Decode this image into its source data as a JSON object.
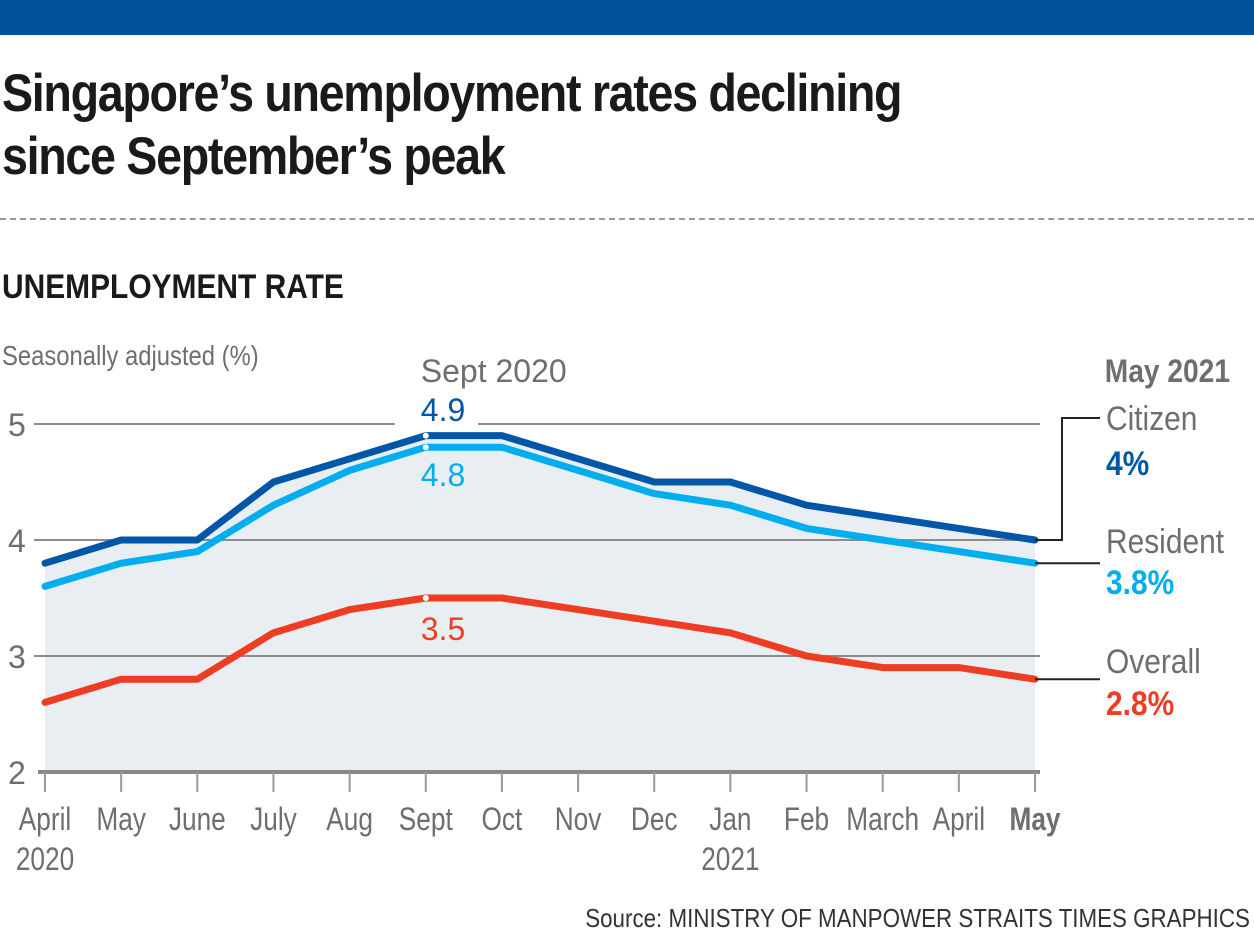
{
  "header": {
    "title_line1": "Singapore’s unemployment rates declining",
    "title_line2": "since September’s peak",
    "subtitle": "UNEMPLOYMENT RATE",
    "unit_label": "Seasonally adjusted (%)",
    "source": "Source: MINISTRY OF MANPOWER   STRAITS TIMES GRAPHICS"
  },
  "colors": {
    "brand_bar": "#00529b",
    "citizen": "#0057a8",
    "resident": "#00aeef",
    "overall": "#ee3d23",
    "area_fill": "#e9eef2",
    "grid": "#8c8c8c",
    "text_gray": "#6d6e71"
  },
  "chart_data": {
    "type": "line",
    "title": "UNEMPLOYMENT RATE",
    "ylabel": "Seasonally adjusted (%)",
    "xlabel": "",
    "ylim": [
      2,
      5
    ],
    "yticks": [
      2,
      3,
      4,
      5
    ],
    "grid": true,
    "categories": [
      "April",
      "May",
      "June",
      "July",
      "Aug",
      "Sept",
      "Oct",
      "Nov",
      "Dec",
      "Jan",
      "Feb",
      "March",
      "April",
      "May"
    ],
    "year_labels": [
      {
        "index": 0,
        "label": "2020"
      },
      {
        "index": 9,
        "label": "2021"
      }
    ],
    "series": [
      {
        "name": "Citizen",
        "values": [
          3.8,
          4.0,
          4.0,
          4.5,
          4.7,
          4.9,
          4.9,
          4.7,
          4.5,
          4.5,
          4.3,
          4.2,
          4.1,
          4.0
        ],
        "end_label": "4%"
      },
      {
        "name": "Resident",
        "values": [
          3.6,
          3.8,
          3.9,
          4.3,
          4.6,
          4.8,
          4.8,
          4.6,
          4.4,
          4.3,
          4.1,
          4.0,
          3.9,
          3.8
        ],
        "end_label": "3.8%"
      },
      {
        "name": "Overall",
        "values": [
          2.6,
          2.8,
          2.8,
          3.2,
          3.4,
          3.5,
          3.5,
          3.4,
          3.3,
          3.2,
          3.0,
          2.9,
          2.9,
          2.8
        ],
        "end_label": "2.8%"
      }
    ],
    "annotations": {
      "peak_heading": "Sept 2020",
      "peak_index": 5,
      "peak_labels": [
        "4.9",
        "4.8",
        "3.5"
      ],
      "end_heading": "May 2021"
    },
    "legend": "right"
  }
}
